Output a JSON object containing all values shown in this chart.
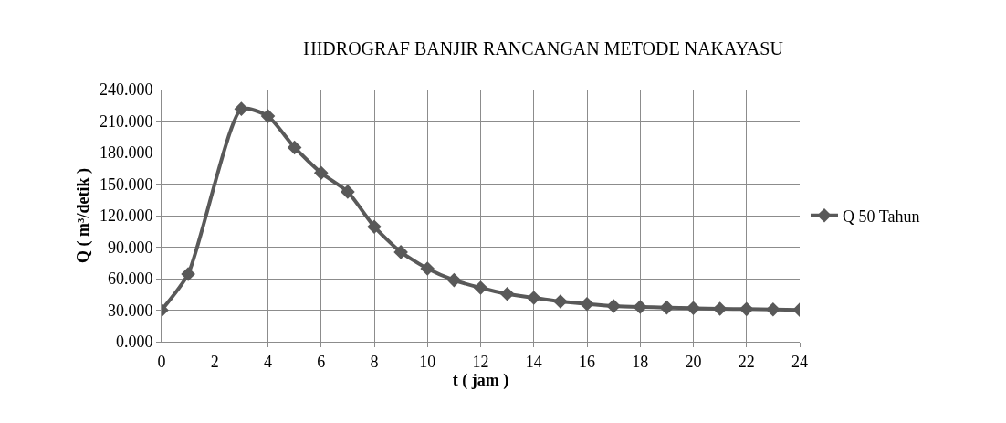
{
  "chart_data": {
    "type": "line",
    "title": "HIDROGRAF BANJIR RANCANGAN METODE NAKAYASU",
    "xlabel": "t ( jam )",
    "ylabel": "Q ( m³/detik )",
    "x": [
      0,
      1,
      2,
      3,
      4,
      5,
      6,
      7,
      8,
      9,
      10,
      11,
      12,
      13,
      14,
      15,
      16,
      17,
      18,
      19,
      20,
      21,
      22,
      23,
      24
    ],
    "series": [
      {
        "name": "Q 50 Tahun",
        "color": "#595959",
        "values": [
          30,
          64.4,
          null,
          221.6,
          214.7,
          184.8,
          160.7,
          142.7,
          109.4,
          85.3,
          69.6,
          58.6,
          51.3,
          45.5,
          41.8,
          38.3,
          35.9,
          33.9,
          33,
          32.5,
          31.9,
          31.3,
          31,
          30.7,
          30.3
        ]
      }
    ],
    "xlim": [
      0,
      24
    ],
    "xticks": [
      0,
      2,
      4,
      6,
      8,
      10,
      12,
      14,
      16,
      18,
      20,
      22,
      24
    ],
    "ylim": [
      0,
      240
    ],
    "yticks": [
      {
        "value": 0,
        "label": "0.000"
      },
      {
        "value": 30,
        "label": "30.000"
      },
      {
        "value": 60,
        "label": "60.000"
      },
      {
        "value": 90,
        "label": "90.000"
      },
      {
        "value": 120,
        "label": "120.000"
      },
      {
        "value": 150,
        "label": "150.000"
      },
      {
        "value": 180,
        "label": "180.000"
      },
      {
        "value": 210,
        "label": "210.000"
      },
      {
        "value": 240,
        "label": "240.000"
      }
    ],
    "grid": true,
    "legend": "right",
    "marker": "diamond",
    "line_style": "solid"
  }
}
